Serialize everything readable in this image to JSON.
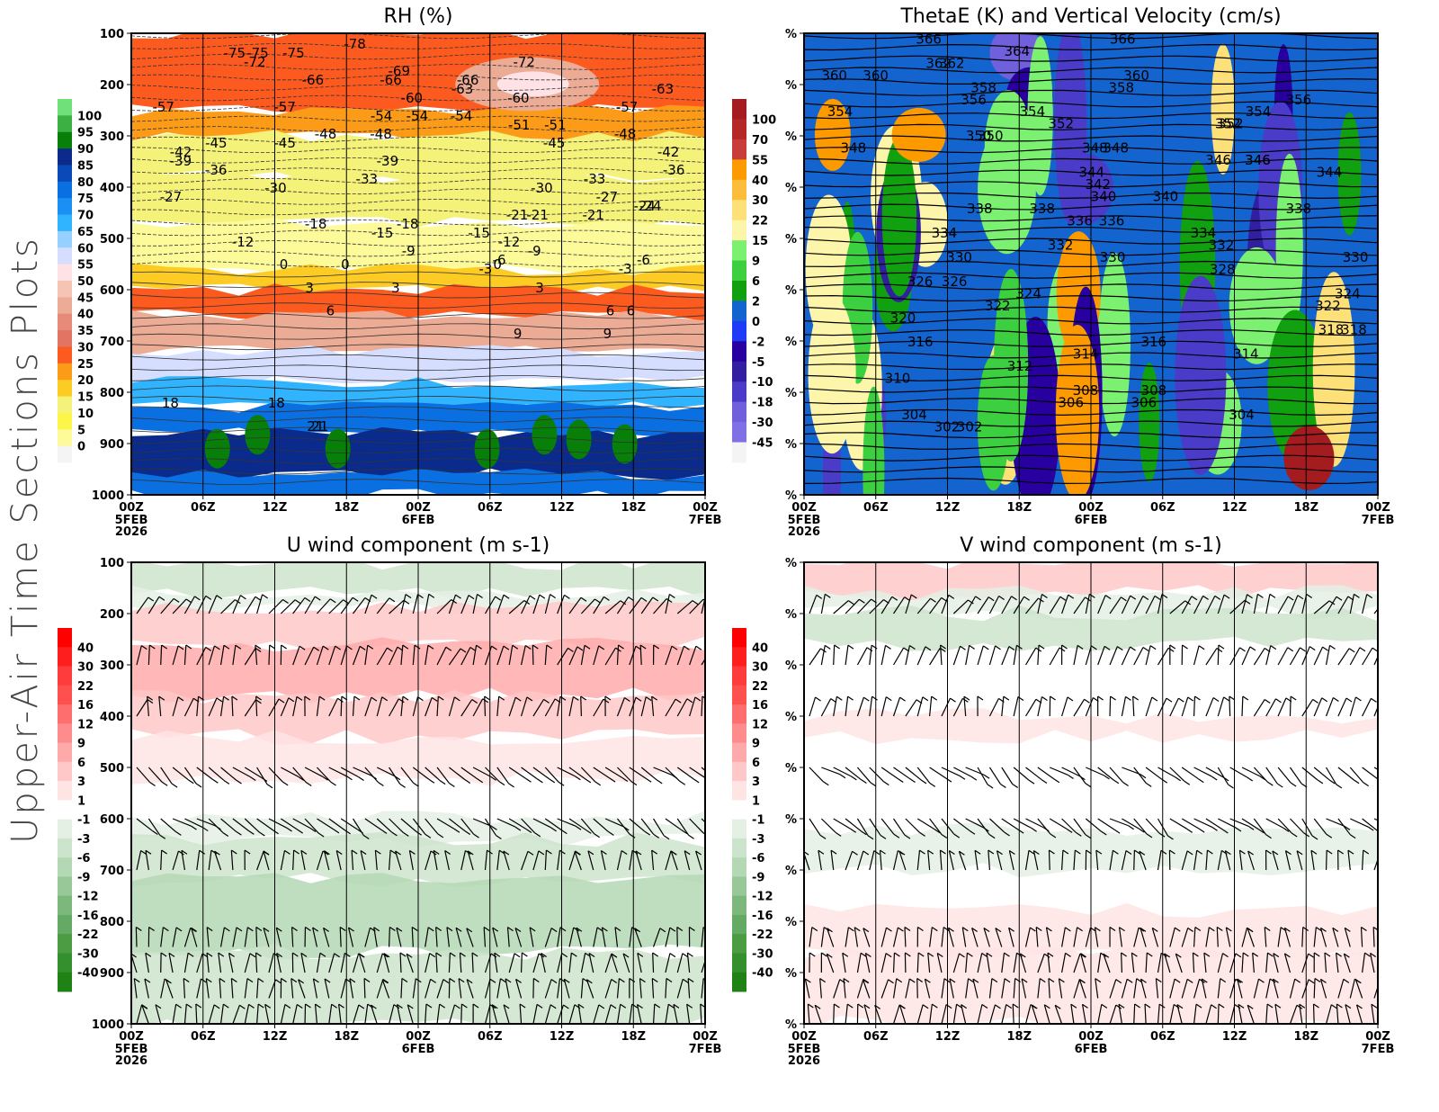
{
  "page": {
    "side_title": "Upper-Air Time Sections Plots"
  },
  "chart_data": [
    {
      "id": "rh",
      "type": "heatmap",
      "title": "RH (%)",
      "xlabel": "",
      "ylabel": "",
      "y_axis": {
        "range": [
          100,
          1000
        ],
        "inverted": true,
        "ticks": [
          "100",
          "200",
          "300",
          "400",
          "500",
          "600",
          "700",
          "800",
          "900",
          "1000"
        ]
      },
      "x_axis": {
        "ticks": [
          "00Z",
          "06Z",
          "12Z",
          "18Z",
          "00Z",
          "06Z",
          "12Z",
          "18Z",
          "00Z"
        ],
        "date_labels": [
          {
            "at": 0,
            "lines": [
              "5FEB",
              "2026"
            ]
          },
          {
            "at": 4,
            "lines": [
              "6FEB"
            ]
          },
          {
            "at": 8,
            "lines": [
              "7FEB"
            ]
          }
        ]
      },
      "colorbar": {
        "labels": [
          "100",
          "95",
          "90",
          "85",
          "80",
          "75",
          "70",
          "65",
          "60",
          "55",
          "50",
          "45",
          "40",
          "35",
          "30",
          "25",
          "20",
          "15",
          "10",
          "5",
          "0"
        ],
        "colors": [
          "#6fe07a",
          "#3cb043",
          "#087f08",
          "#0a2a8c",
          "#0a4ab8",
          "#0a6fe0",
          "#1a90f5",
          "#30b4ff",
          "#96d0ff",
          "#d6deff",
          "#ffe2e6",
          "#f5c4b4",
          "#ecab94",
          "#e68a7a",
          "#e17463",
          "#fc5a1e",
          "#fc9b18",
          "#fccb24",
          "#f5f27a",
          "#fcf54a",
          "#fdfa9a",
          "#f4f4f4"
        ]
      },
      "contour_labels": {
        "dashed": [
          "-75",
          "-69",
          "-66",
          "-57",
          "-54",
          "-48",
          "-45",
          "-72",
          "-60",
          "-51",
          "-36",
          "-75",
          "-66",
          "-57",
          "-48",
          "-45",
          "-39",
          "-63",
          "-54",
          "-42",
          "-33",
          "-27",
          "-30",
          "-24",
          "-18",
          "-12",
          "-6",
          "-3",
          "-21",
          "-15",
          "-9",
          "-72",
          "-60",
          "-51",
          "-36",
          "-21",
          "-6",
          "-78",
          "-75",
          "-66",
          "-57",
          "-48",
          "-45",
          "-39",
          "-30",
          "-24",
          "-18",
          "-63",
          "-54",
          "-42",
          "-33",
          "-27",
          "-21",
          "-15",
          "-12",
          "-9",
          "-3"
        ],
        "solid": [
          "0",
          "3",
          "6",
          "9",
          "0",
          "3",
          "6",
          "9",
          "0",
          "3",
          "6",
          "18",
          "21",
          "18",
          "21"
        ]
      }
    },
    {
      "id": "thetae",
      "type": "heatmap",
      "title": "ThetaE (K) and Vertical Velocity (cm/s)",
      "y_axis": {
        "range": [
          100,
          1000
        ],
        "inverted": true,
        "ticks": [
          "%",
          "%",
          "%",
          "%",
          "%",
          "%",
          "%",
          "%",
          "%",
          "%"
        ]
      },
      "x_axis": {
        "ticks": [
          "00Z",
          "06Z",
          "12Z",
          "18Z",
          "00Z",
          "06Z",
          "12Z",
          "18Z",
          "00Z"
        ],
        "date_labels": [
          {
            "at": 0,
            "lines": [
              "5FEB",
              "2026"
            ]
          },
          {
            "at": 4,
            "lines": [
              "6FEB"
            ]
          },
          {
            "at": 8,
            "lines": [
              "7FEB"
            ]
          }
        ]
      },
      "colorbar": {
        "labels": [
          "100",
          "70",
          "55",
          "40",
          "30",
          "22",
          "15",
          "9",
          "6",
          "2",
          "0",
          "-2",
          "-5",
          "-10",
          "-18",
          "-30",
          "-45"
        ],
        "colors": [
          "#a51c20",
          "#b62828",
          "#c83c3c",
          "#fc9a00",
          "#fcbc3c",
          "#fde078",
          "#fdf6aa",
          "#7cf070",
          "#3cd040",
          "#10a010",
          "#1464d0",
          "#1e3cf8",
          "#2800a0",
          "#321ea0",
          "#4a3cc8",
          "#7060dc",
          "#8070e6",
          "#f4f4f4"
        ]
      },
      "contour_labels": [
        "366",
        "358",
        "360",
        "362",
        "352",
        "354",
        "356",
        "348",
        "350",
        "346",
        "366",
        "362",
        "360",
        "364",
        "360",
        "358",
        "356",
        "354",
        "352",
        "348",
        "350",
        "354",
        "352",
        "348",
        "346",
        "344",
        "346",
        "344",
        "342",
        "340",
        "340",
        "338",
        "338",
        "338",
        "336",
        "336",
        "334",
        "334",
        "332",
        "332",
        "330",
        "330",
        "330",
        "328",
        "326",
        "326",
        "324",
        "324",
        "322",
        "322",
        "320",
        "318",
        "318",
        "316",
        "316",
        "314",
        "314",
        "312",
        "310",
        "308",
        "308",
        "306",
        "306",
        "304",
        "304",
        "302",
        "302"
      ]
    },
    {
      "id": "uwind",
      "type": "heatmap",
      "title": "U wind component (m s-1)",
      "y_axis": {
        "range": [
          100,
          1000
        ],
        "inverted": true,
        "ticks": [
          "100",
          "200",
          "300",
          "400",
          "500",
          "600",
          "700",
          "800",
          "900",
          "1000"
        ]
      },
      "x_axis": {
        "ticks": [
          "00Z",
          "06Z",
          "12Z",
          "18Z",
          "00Z",
          "06Z",
          "12Z",
          "18Z",
          "00Z"
        ],
        "date_labels": [
          {
            "at": 0,
            "lines": [
              "5FEB",
              "2026"
            ]
          },
          {
            "at": 4,
            "lines": [
              "6FEB"
            ]
          },
          {
            "at": 8,
            "lines": [
              "7FEB"
            ]
          }
        ]
      },
      "colorbar": {
        "labels": [
          "40",
          "30",
          "22",
          "16",
          "12",
          "9",
          "6",
          "3",
          "1",
          "-1",
          "-3",
          "-6",
          "-9",
          "-12",
          "-16",
          "-22",
          "-30",
          "-40"
        ],
        "colors": [
          "#ff0000",
          "#ff1e1e",
          "#ff3c3c",
          "#ff5050",
          "#ff6e6e",
          "#ff8c8c",
          "#ffaaaa",
          "#ffc8c8",
          "#ffe4e4",
          "#ffffff",
          "#e4f0e4",
          "#cce4cc",
          "#b4d8b4",
          "#98c898",
          "#7cb87c",
          "#64aa64",
          "#4c9c44",
          "#34902c",
          "#1e8214"
        ]
      },
      "barb_levels": [
        100,
        200,
        300,
        400,
        500,
        600,
        700,
        850,
        900,
        950,
        1000
      ]
    },
    {
      "id": "vwind",
      "type": "heatmap",
      "title": "V wind component (m s-1)",
      "y_axis": {
        "range": [
          100,
          1000
        ],
        "inverted": true,
        "ticks": [
          "%",
          "%",
          "%",
          "%",
          "%",
          "%",
          "%",
          "%",
          "%",
          "%"
        ]
      },
      "x_axis": {
        "ticks": [
          "00Z",
          "06Z",
          "12Z",
          "18Z",
          "00Z",
          "06Z",
          "12Z",
          "18Z",
          "00Z"
        ],
        "date_labels": [
          {
            "at": 0,
            "lines": [
              "5FEB",
              "2026"
            ]
          },
          {
            "at": 4,
            "lines": [
              "6FEB"
            ]
          },
          {
            "at": 8,
            "lines": [
              "7FEB"
            ]
          }
        ]
      },
      "colorbar": {
        "labels": [
          "40",
          "30",
          "22",
          "16",
          "12",
          "9",
          "6",
          "3",
          "1",
          "-1",
          "-3",
          "-6",
          "-9",
          "-12",
          "-16",
          "-22",
          "-30",
          "-40"
        ],
        "colors": [
          "#ff0000",
          "#ff1e1e",
          "#ff3c3c",
          "#ff5050",
          "#ff6e6e",
          "#ff8c8c",
          "#ffaaaa",
          "#ffc8c8",
          "#ffe4e4",
          "#ffffff",
          "#e4f0e4",
          "#cce4cc",
          "#b4d8b4",
          "#98c898",
          "#7cb87c",
          "#64aa64",
          "#4c9c44",
          "#34902c",
          "#1e8214"
        ]
      },
      "barb_levels": [
        100,
        200,
        300,
        400,
        500,
        600,
        700,
        850,
        900,
        950,
        1000
      ]
    }
  ]
}
